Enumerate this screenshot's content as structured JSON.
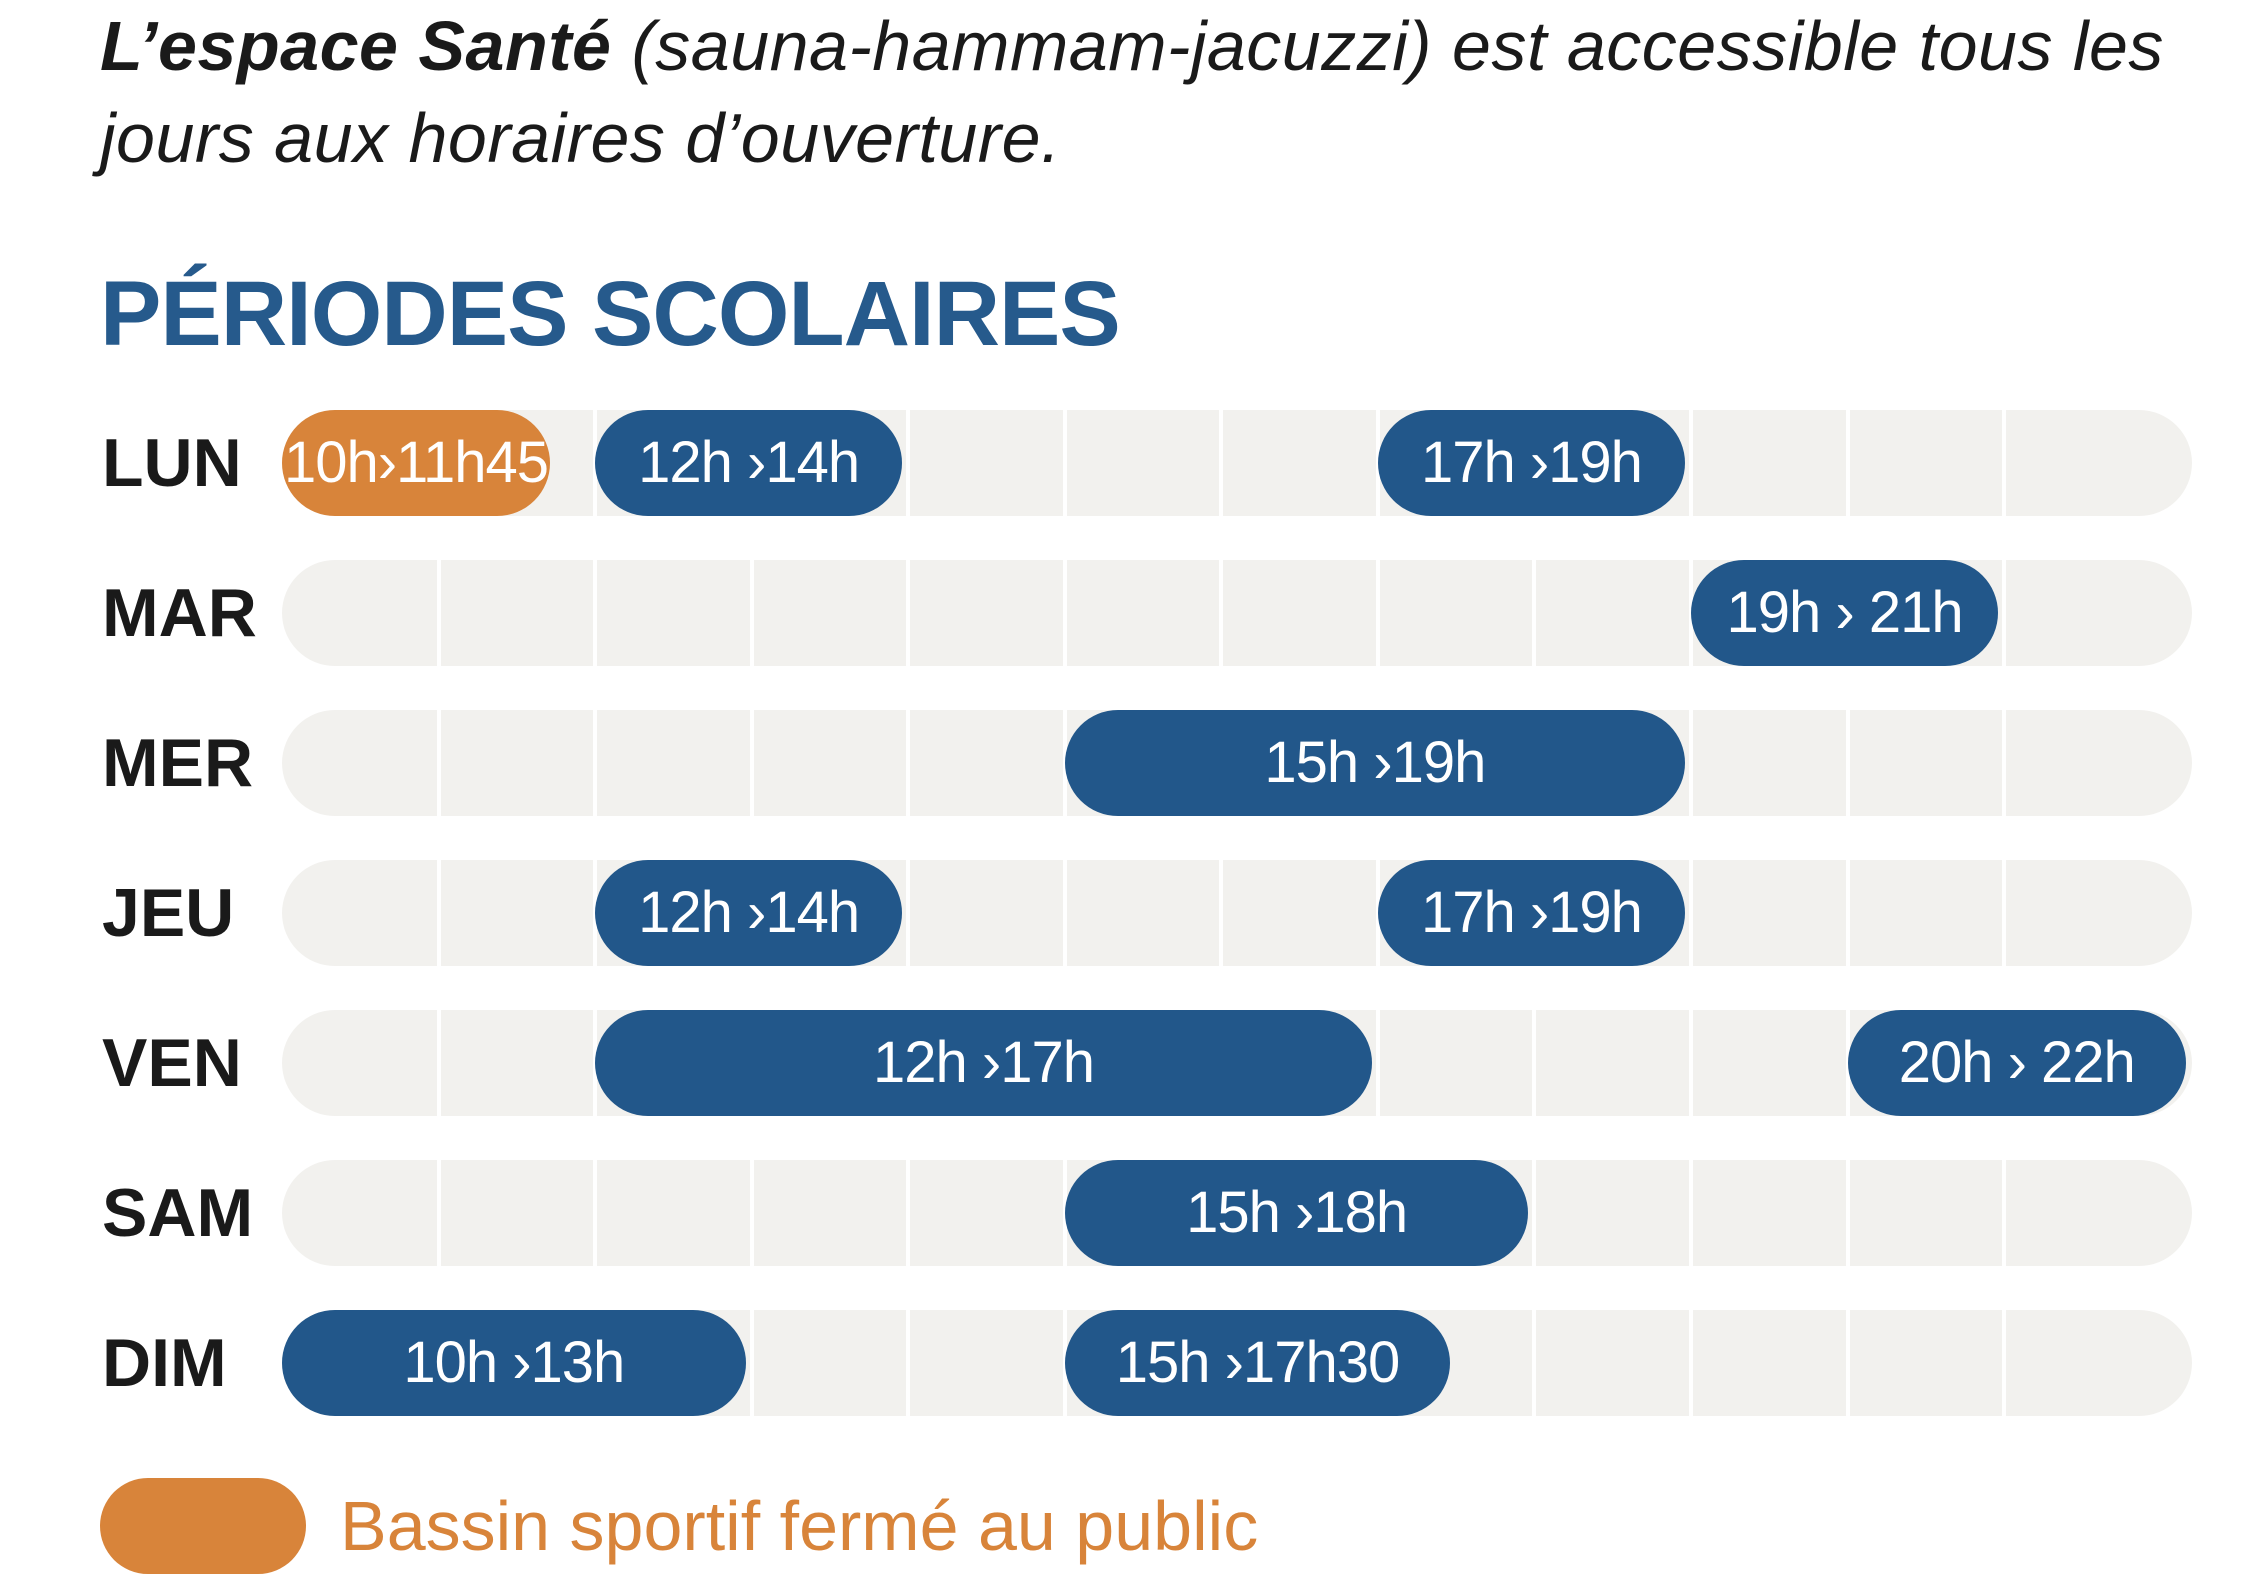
{
  "intro": {
    "bold": "L’espace Santé",
    "text": " (sauna-hammam-jacuzzi) est accessible tous les jours aux horaires d’ouverture."
  },
  "section_title": "PÉRIODES SCOLAIRES",
  "colors": {
    "open": "#22578a",
    "closed_pool": "#d8843a",
    "track": "#f2f1ee",
    "title": "#265a8c"
  },
  "days": [
    {
      "label": "LUN",
      "slots": [
        {
          "label": "10h›11h45",
          "start": 10,
          "end": 11.75,
          "type": "closed_pool"
        },
        {
          "label": "12h ›14h",
          "start": 12,
          "end": 14,
          "type": "open"
        },
        {
          "label": "17h ›19h",
          "start": 17,
          "end": 19,
          "type": "open"
        }
      ]
    },
    {
      "label": "MAR",
      "slots": [
        {
          "label": "19h › 21h",
          "start": 19,
          "end": 21,
          "type": "open"
        }
      ]
    },
    {
      "label": "MER",
      "slots": [
        {
          "label": "15h ›19h",
          "start": 15,
          "end": 19,
          "type": "open"
        }
      ]
    },
    {
      "label": "JEU",
      "slots": [
        {
          "label": "12h ›14h",
          "start": 12,
          "end": 14,
          "type": "open"
        },
        {
          "label": "17h ›19h",
          "start": 17,
          "end": 19,
          "type": "open"
        }
      ]
    },
    {
      "label": "VEN",
      "slots": [
        {
          "label": "12h ›17h",
          "start": 12,
          "end": 17,
          "type": "open"
        },
        {
          "label": "20h › 22h",
          "start": 20,
          "end": 22,
          "type": "open"
        }
      ]
    },
    {
      "label": "SAM",
      "slots": [
        {
          "label": "15h ›18h",
          "start": 15,
          "end": 18,
          "type": "open"
        }
      ]
    },
    {
      "label": "DIM",
      "slots": [
        {
          "label": "10h ›13h",
          "start": 10,
          "end": 13,
          "type": "open"
        },
        {
          "label": "15h ›17h30",
          "start": 15,
          "end": 17.5,
          "type": "open"
        }
      ]
    }
  ],
  "legend": {
    "label": "Bassin sportif fermé au public",
    "color": "#d8843a"
  }
}
